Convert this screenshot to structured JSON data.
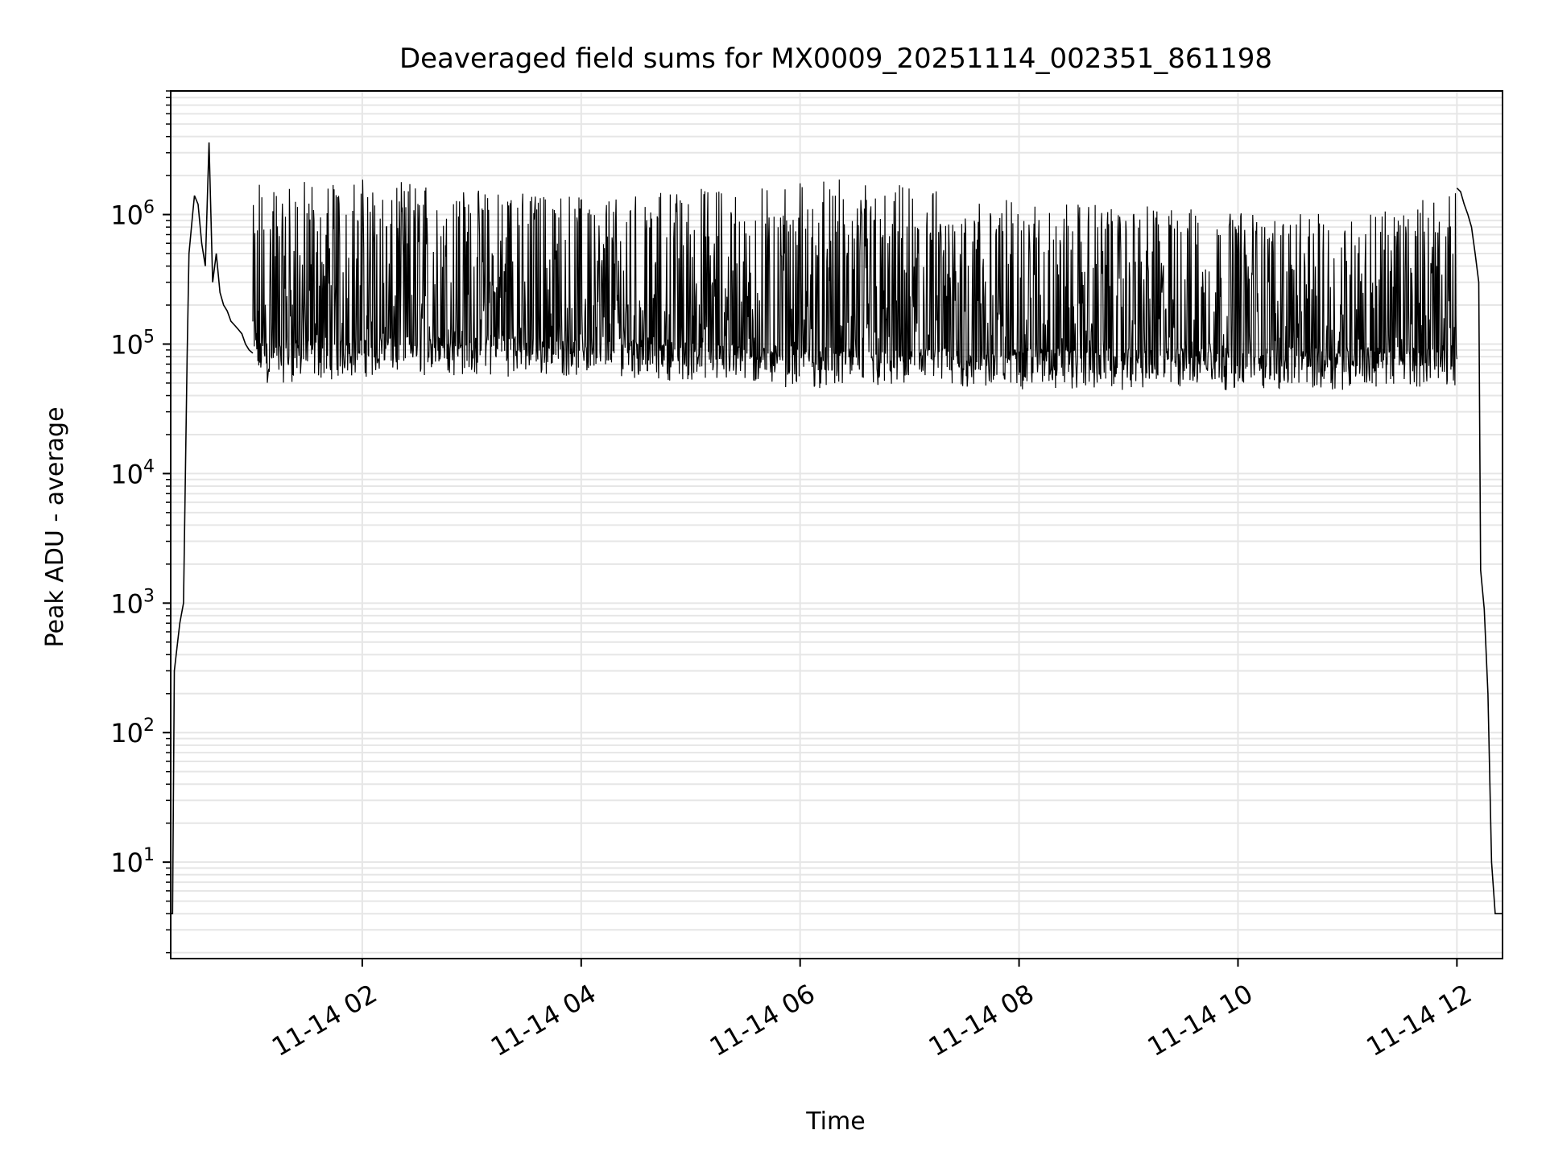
{
  "chart_data": {
    "type": "line",
    "title": "Deaveraged field sums for MX0009_20251114_002351_861198",
    "xlabel": "Time",
    "ylabel": "Peak ADU - average",
    "yscale": "log",
    "grid": true,
    "line_color": "#000000",
    "grid_color": "#e6e6e6",
    "xlim": [
      "2025-11-14 00:15",
      "2025-11-14 12:25"
    ],
    "ylim": [
      1.8,
      9000000
    ],
    "x_ticks": [
      "11-14 02",
      "11-14 04",
      "11-14 06",
      "11-14 08",
      "11-14 10",
      "11-14 12"
    ],
    "x_tick_times": [
      "2025-11-14 02:00",
      "2025-11-14 04:00",
      "2025-11-14 06:00",
      "2025-11-14 08:00",
      "2025-11-14 10:00",
      "2025-11-14 12:00"
    ],
    "y_tick_values": [
      10,
      100,
      1000,
      10000,
      100000,
      1000000
    ],
    "y_ticks": [
      {
        "base": "10",
        "exp": "1"
      },
      {
        "base": "10",
        "exp": "2"
      },
      {
        "base": "10",
        "exp": "3"
      },
      {
        "base": "10",
        "exp": "4"
      },
      {
        "base": "10",
        "exp": "5"
      },
      {
        "base": "10",
        "exp": "6"
      }
    ],
    "series": [
      {
        "x": [
          "2025-11-14 00:15",
          "2025-11-14 00:16",
          "2025-11-14 00:17",
          "2025-11-14 00:18",
          "2025-11-14 00:20",
          "2025-11-14 00:22",
          "2025-11-14 00:24",
          "2025-11-14 00:25",
          "2025-11-14 00:27",
          "2025-11-14 00:28",
          "2025-11-14 00:30",
          "2025-11-14 00:32",
          "2025-11-14 00:34",
          "2025-11-14 00:36",
          "2025-11-14 00:38",
          "2025-11-14 00:40",
          "2025-11-14 00:42",
          "2025-11-14 00:44",
          "2025-11-14 00:46",
          "2025-11-14 00:48",
          "2025-11-14 00:50",
          "2025-11-14 00:52",
          "2025-11-14 00:54",
          "2025-11-14 00:56",
          "2025-11-14 00:58",
          "2025-11-14 01:00",
          "2025-11-14 12:00",
          "2025-11-14 12:02",
          "2025-11-14 12:04",
          "2025-11-14 12:06",
          "2025-11-14 12:08",
          "2025-11-14 12:10",
          "2025-11-14 12:12",
          "2025-11-14 12:13",
          "2025-11-14 12:15",
          "2025-11-14 12:17",
          "2025-11-14 12:19",
          "2025-11-14 12:21",
          "2025-11-14 12:22",
          "2025-11-14 12:23",
          "2025-11-14 12:25"
        ],
        "y": [
          4,
          4,
          300,
          400,
          700,
          1000,
          80000,
          500000,
          1000000,
          1400000,
          1200000,
          600000,
          400000,
          3600000,
          300000,
          500000,
          250000,
          200000,
          180000,
          150000,
          140000,
          130000,
          120000,
          100000,
          90000,
          85000,
          1600000,
          1500000,
          1200000,
          1000000,
          800000,
          500000,
          300000,
          1800,
          900,
          200,
          10,
          4,
          4,
          4,
          4
        ]
      }
    ],
    "band": {
      "x_start": "2025-11-14 01:00",
      "x_end": "2025-11-14 12:00",
      "description_values": {
        "upper_typical": [
          1200000,
          1300000,
          1300000,
          1100000,
          1000000,
          900000,
          900000,
          900000,
          900000,
          800000,
          900000
        ],
        "lower_typical": [
          60000,
          70000,
          70000,
          70000,
          60000,
          55000,
          55000,
          55000,
          55000,
          55000,
          60000
        ],
        "peaks": [
          1800000,
          1900000,
          1500000,
          1400000,
          1700000,
          1900000,
          1400000,
          1200000,
          1100000,
          1000000,
          1500000
        ]
      }
    }
  }
}
